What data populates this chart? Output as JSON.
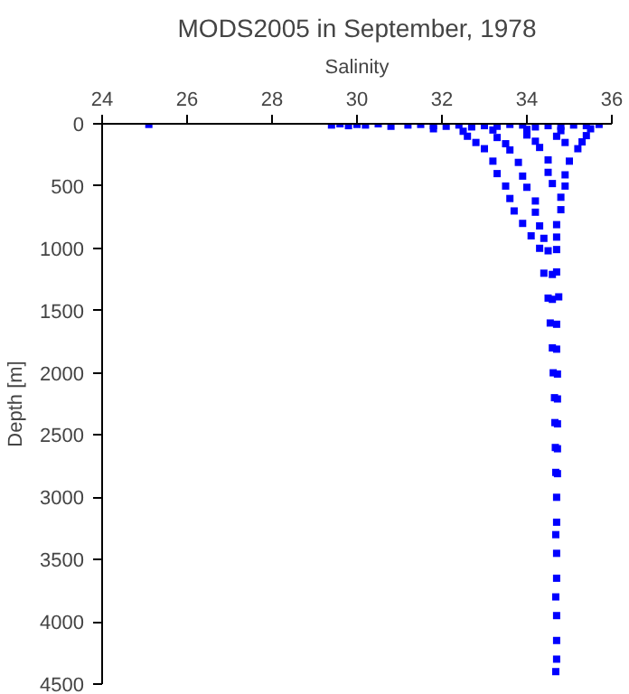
{
  "chart_data": {
    "type": "scatter",
    "title": "MODS2005 in September, 1978",
    "xlabel": "Salinity",
    "ylabel": "Depth [m]",
    "xlim": [
      24,
      36
    ],
    "xticks": [
      24,
      26,
      28,
      30,
      32,
      34,
      36
    ],
    "ylim": [
      4500,
      0
    ],
    "yticks": [
      0,
      500,
      1000,
      1500,
      2000,
      2500,
      3000,
      3500,
      4000,
      4500
    ],
    "grid": false,
    "marker": "square",
    "series": [
      {
        "color": "#0000ff",
        "x": [
          25.1,
          29.4,
          29.6,
          29.8,
          30.0,
          30.2,
          30.5,
          30.8,
          31.2,
          31.5,
          31.8,
          32.1,
          32.4,
          32.7,
          33.0,
          33.3,
          33.6,
          33.9,
          34.2,
          34.5,
          34.8,
          35.1,
          35.4,
          35.7,
          31.8,
          32.5,
          33.2,
          34.0,
          34.8,
          35.5,
          32.6,
          33.3,
          34.0,
          34.7,
          35.4,
          32.8,
          33.5,
          34.2,
          34.9,
          35.3,
          33.0,
          33.6,
          34.3,
          35.2,
          33.2,
          33.8,
          34.5,
          35.0,
          33.3,
          33.9,
          34.5,
          34.9,
          33.5,
          34.0,
          34.6,
          34.9,
          33.6,
          34.2,
          34.8,
          33.7,
          34.2,
          34.8,
          33.9,
          34.3,
          34.7,
          34.1,
          34.4,
          34.7,
          34.3,
          34.5,
          34.7,
          34.4,
          34.6,
          34.7,
          34.5,
          34.6,
          34.75,
          34.55,
          34.7,
          34.6,
          34.7,
          34.62,
          34.72,
          34.65,
          34.72,
          34.66,
          34.72,
          34.67,
          34.72,
          34.68,
          34.72,
          34.7,
          34.7,
          34.68,
          34.7,
          34.7,
          34.68,
          34.7,
          34.7,
          34.7,
          34.68
        ],
        "values": [
          5,
          10,
          0,
          15,
          5,
          10,
          0,
          20,
          10,
          5,
          15,
          20,
          10,
          25,
          15,
          20,
          5,
          10,
          25,
          15,
          20,
          10,
          15,
          5,
          40,
          60,
          50,
          45,
          55,
          40,
          100,
          110,
          90,
          100,
          95,
          150,
          160,
          140,
          150,
          145,
          200,
          210,
          190,
          200,
          300,
          310,
          290,
          300,
          400,
          420,
          390,
          410,
          500,
          510,
          480,
          500,
          600,
          620,
          590,
          700,
          710,
          690,
          800,
          820,
          810,
          900,
          920,
          910,
          1000,
          1020,
          1010,
          1200,
          1210,
          1190,
          1400,
          1410,
          1390,
          1600,
          1610,
          1800,
          1810,
          2000,
          2010,
          2200,
          2210,
          2400,
          2410,
          2600,
          2610,
          2800,
          2810,
          3000,
          3200,
          3300,
          3450,
          3650,
          3800,
          3950,
          4150,
          4300,
          4400
        ]
      }
    ]
  }
}
